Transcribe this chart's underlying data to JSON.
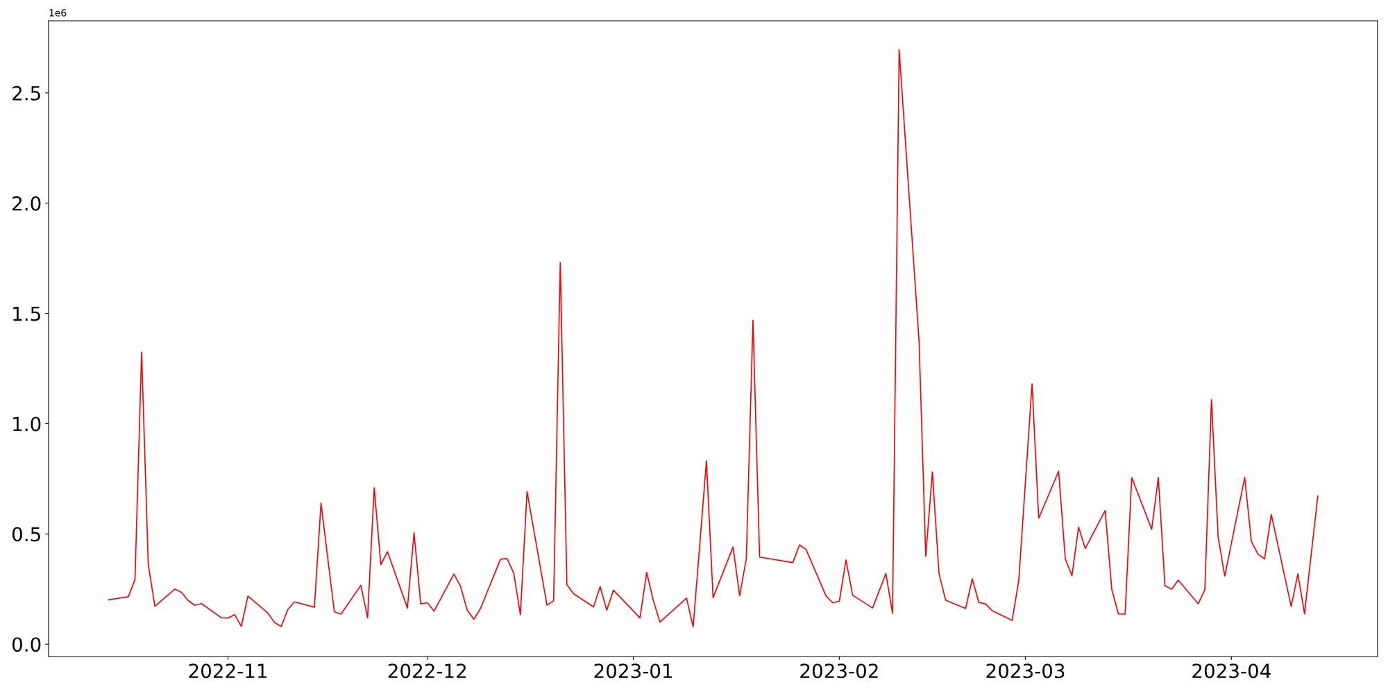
{
  "chart_data": {
    "type": "line",
    "x": [
      "2022-10-14",
      "2022-10-17",
      "2022-10-18",
      "2022-10-19",
      "2022-10-20",
      "2022-10-21",
      "2022-10-24",
      "2022-10-25",
      "2022-10-26",
      "2022-10-27",
      "2022-10-28",
      "2022-10-31",
      "2022-11-01",
      "2022-11-02",
      "2022-11-03",
      "2022-11-04",
      "2022-11-07",
      "2022-11-08",
      "2022-11-09",
      "2022-11-10",
      "2022-11-11",
      "2022-11-14",
      "2022-11-15",
      "2022-11-17",
      "2022-11-18",
      "2022-11-21",
      "2022-11-22",
      "2022-11-23",
      "2022-11-24",
      "2022-11-25",
      "2022-11-28",
      "2022-11-29",
      "2022-11-30",
      "2022-12-01",
      "2022-12-02",
      "2022-12-05",
      "2022-12-06",
      "2022-12-07",
      "2022-12-08",
      "2022-12-09",
      "2022-12-12",
      "2022-12-13",
      "2022-12-14",
      "2022-12-15",
      "2022-12-16",
      "2022-12-19",
      "2022-12-20",
      "2022-12-21",
      "2022-12-22",
      "2022-12-23",
      "2022-12-26",
      "2022-12-27",
      "2022-12-28",
      "2022-12-29",
      "2023-01-02",
      "2023-01-03",
      "2023-01-04",
      "2023-01-05",
      "2023-01-09",
      "2023-01-10",
      "2023-01-12",
      "2023-01-13",
      "2023-01-16",
      "2023-01-17",
      "2023-01-18",
      "2023-01-19",
      "2023-01-20",
      "2023-01-25",
      "2023-01-26",
      "2023-01-27",
      "2023-01-30",
      "2023-01-31",
      "2023-02-01",
      "2023-02-02",
      "2023-02-03",
      "2023-02-06",
      "2023-02-08",
      "2023-02-09",
      "2023-02-10",
      "2023-02-13",
      "2023-02-14",
      "2023-02-15",
      "2023-02-16",
      "2023-02-17",
      "2023-02-20",
      "2023-02-21",
      "2023-02-22",
      "2023-02-23",
      "2023-02-24",
      "2023-02-27",
      "2023-02-28",
      "2023-03-02",
      "2023-03-03",
      "2023-03-06",
      "2023-03-07",
      "2023-03-08",
      "2023-03-09",
      "2023-03-10",
      "2023-03-13",
      "2023-03-14",
      "2023-03-15",
      "2023-03-16",
      "2023-03-17",
      "2023-03-20",
      "2023-03-21",
      "2023-03-22",
      "2023-03-23",
      "2023-03-24",
      "2023-03-27",
      "2023-03-28",
      "2023-03-29",
      "2023-03-30",
      "2023-03-31",
      "2023-04-03",
      "2023-04-04",
      "2023-04-05",
      "2023-04-06",
      "2023-04-07",
      "2023-04-10",
      "2023-04-11",
      "2023-04-12",
      "2023-04-14"
    ],
    "series": [
      {
        "color": "#ff0000",
        "values": [
          0.201,
          0.215,
          0.293,
          1.324,
          0.361,
          0.172,
          0.25,
          0.235,
          0.198,
          0.176,
          0.184,
          0.12,
          0.119,
          0.134,
          0.081,
          0.218,
          0.141,
          0.098,
          0.08,
          0.157,
          0.192,
          0.168,
          0.639,
          0.147,
          0.136,
          0.267,
          0.119,
          0.709,
          0.361,
          0.419,
          0.164,
          0.505,
          0.183,
          0.188,
          0.15,
          0.318,
          0.262,
          0.154,
          0.113,
          0.162,
          0.385,
          0.388,
          0.322,
          0.134,
          0.692,
          0.177,
          0.197,
          1.731,
          0.269,
          0.229,
          0.169,
          0.261,
          0.154,
          0.245,
          0.119,
          0.325,
          0.199,
          0.1,
          0.209,
          0.078,
          0.831,
          0.211,
          0.441,
          0.22,
          0.389,
          1.469,
          0.395,
          0.37,
          0.45,
          0.429,
          0.218,
          0.188,
          0.195,
          0.382,
          0.222,
          0.164,
          0.321,
          0.14,
          2.696,
          1.372,
          0.398,
          0.781,
          0.319,
          0.199,
          0.162,
          0.296,
          0.189,
          0.183,
          0.152,
          0.108,
          0.288,
          1.181,
          0.571,
          0.784,
          0.387,
          0.31,
          0.531,
          0.434,
          0.606,
          0.248,
          0.137,
          0.136,
          0.756,
          0.521,
          0.756,
          0.265,
          0.249,
          0.29,
          0.183,
          0.247,
          1.109,
          0.487,
          0.309,
          0.756,
          0.466,
          0.408,
          0.387,
          0.588,
          0.171,
          0.319,
          0.138,
          0.672
        ]
      }
    ],
    "xlim": [
      "2022-10-05",
      "2023-04-23"
    ],
    "xticks": [
      {
        "value": "2022-11-01",
        "label": "2022-11"
      },
      {
        "value": "2022-12-01",
        "label": "2022-12"
      },
      {
        "value": "2023-01-01",
        "label": "2023-01"
      },
      {
        "value": "2023-02-01",
        "label": "2023-02"
      },
      {
        "value": "2023-03-01",
        "label": "2023-03"
      },
      {
        "value": "2023-04-01",
        "label": "2023-04"
      }
    ],
    "ylim": [
      -0.056,
      2.827
    ],
    "yticks": [
      {
        "value": 0,
        "label": "0.0"
      },
      0.5,
      {
        "value": 1,
        "label": "1.0"
      },
      1.5,
      {
        "value": 2,
        "label": "2.0"
      },
      2.5
    ],
    "annotations": [
      "1e6"
    ],
    "line_style": "solid"
  }
}
